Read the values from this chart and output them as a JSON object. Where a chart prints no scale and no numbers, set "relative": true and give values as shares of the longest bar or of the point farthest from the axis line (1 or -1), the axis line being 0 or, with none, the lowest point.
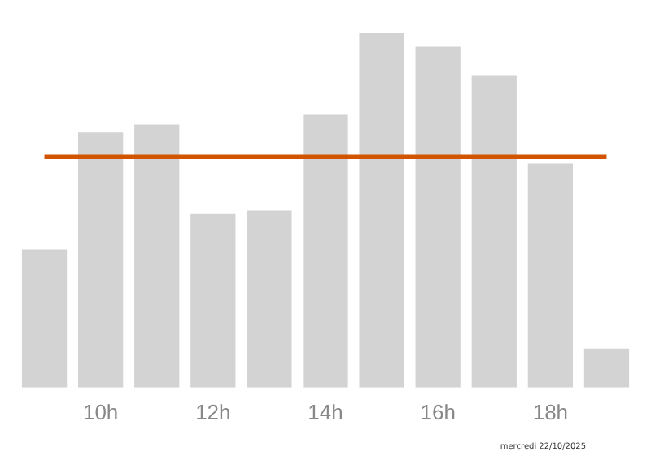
{
  "chart_data": {
    "type": "bar",
    "relative": true,
    "categories": [
      null,
      "10h",
      null,
      "12h",
      null,
      "14h",
      null,
      "16h",
      null,
      "18h",
      null
    ],
    "values": [
      0.39,
      0.72,
      0.74,
      0.49,
      0.5,
      0.77,
      1,
      0.96,
      0.88,
      0.63,
      0.11
    ],
    "color": "#d3d3d3",
    "ref_lines": [
      {
        "axis": "y",
        "value": 0.65,
        "color": "#d35400"
      }
    ],
    "annotations": [
      "mercredi 22/10/2025"
    ],
    "grid": false,
    "legend": false
  }
}
